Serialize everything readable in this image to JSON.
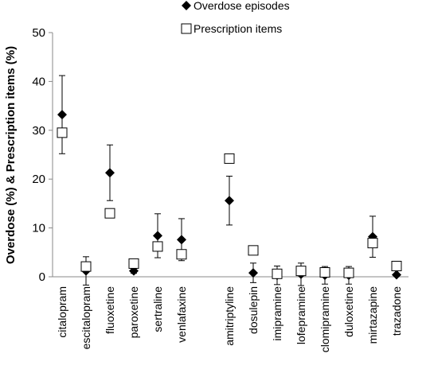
{
  "chart_data": {
    "type": "scatter",
    "y_label": "Overdose (%) & Prescription items (%)",
    "categories": [
      "citalopram",
      "escitalopram",
      "fluoxetine",
      "paroxetine",
      "sertraline",
      "venlafaxine",
      null,
      "amitriptyline",
      "dosulepin",
      "imipramine",
      "lofepramine",
      "clomipramine",
      "duloxetine",
      "mirtazapine",
      "trazadone"
    ],
    "series": [
      {
        "name": "Overdose episodes",
        "marker": "diamond",
        "color": "#000000",
        "values": [
          33.2,
          1.2,
          21.3,
          1.2,
          8.4,
          7.6,
          null,
          15.6,
          0.8,
          0.3,
          0.5,
          0.3,
          0.3,
          8.2,
          0.4
        ],
        "errors": [
          8,
          2.9,
          5.7,
          0.5,
          4.5,
          4.3,
          null,
          5,
          2,
          1.9,
          2.3,
          1.8,
          1.8,
          4.2,
          0.2
        ]
      },
      {
        "name": "Prescription items",
        "marker": "square",
        "color": "#000000",
        "values": [
          29.5,
          2.1,
          13.0,
          2.7,
          6.2,
          4.6,
          null,
          24.2,
          5.4,
          0.6,
          1.2,
          0.9,
          0.8,
          6.9,
          2.2
        ]
      }
    ],
    "ylim": [
      0,
      50
    ],
    "yticks": [
      0,
      10,
      20,
      30,
      40,
      50
    ],
    "grid": false
  }
}
